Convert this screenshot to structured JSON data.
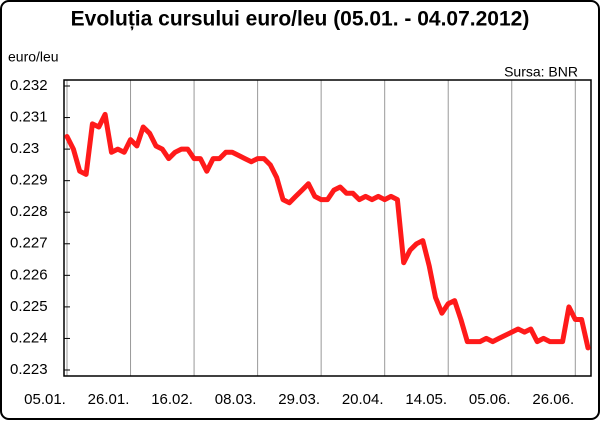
{
  "chart_data": {
    "type": "line",
    "title": "Evoluția cursului euro/leu (05.01. - 04.07.2012)",
    "y_label": "euro/leu",
    "source": "Sursa: BNR",
    "categories": [
      "05.01.",
      null,
      null,
      null,
      null,
      null,
      null,
      null,
      null,
      null,
      "26.01.",
      null,
      null,
      null,
      null,
      null,
      null,
      null,
      null,
      null,
      "16.02.",
      null,
      null,
      null,
      null,
      null,
      null,
      null,
      null,
      null,
      "08.03.",
      null,
      null,
      null,
      null,
      null,
      null,
      null,
      null,
      null,
      "29.03.",
      null,
      null,
      null,
      null,
      null,
      null,
      null,
      null,
      null,
      "20.04.",
      null,
      null,
      null,
      null,
      null,
      null,
      null,
      null,
      null,
      "14.05.",
      null,
      null,
      null,
      null,
      null,
      null,
      null,
      null,
      null,
      "05.06.",
      null,
      null,
      null,
      null,
      null,
      null,
      null,
      null,
      null,
      "26.06.",
      null,
      null
    ],
    "series": [
      {
        "name": "euro/leu",
        "color": "#ff1a1a",
        "values": [
          0.2304,
          0.23,
          0.2293,
          0.2292,
          0.2308,
          0.2307,
          0.2311,
          0.2299,
          0.23,
          0.2299,
          0.2303,
          0.2301,
          0.2307,
          0.2305,
          0.2301,
          0.23,
          0.2297,
          0.2299,
          0.23,
          0.23,
          0.2297,
          0.2297,
          0.2293,
          0.2297,
          0.2297,
          0.2299,
          0.2299,
          0.2298,
          0.2297,
          0.2296,
          0.2297,
          0.2297,
          0.2295,
          0.2291,
          0.2284,
          0.2283,
          0.2285,
          0.2287,
          0.2289,
          0.2285,
          0.2284,
          0.2284,
          0.2287,
          0.2288,
          0.2286,
          0.2286,
          0.2284,
          0.2285,
          0.2284,
          0.2285,
          0.2284,
          0.2285,
          0.2284,
          0.2264,
          0.2268,
          0.227,
          0.2271,
          0.2263,
          0.2253,
          0.2248,
          0.2251,
          0.2252,
          0.2246,
          0.2239,
          0.2239,
          0.2239,
          0.224,
          0.2239,
          0.224,
          0.2241,
          0.2242,
          0.2243,
          0.2242,
          0.2243,
          0.2239,
          0.224,
          0.2239,
          0.2239,
          0.2239,
          0.225,
          0.2246,
          0.2246,
          0.2237
        ]
      }
    ],
    "ylim": [
      0.223,
      0.232
    ],
    "yticks": [
      0.223,
      0.224,
      0.225,
      0.226,
      0.227,
      0.228,
      0.229,
      0.23,
      0.231,
      0.232
    ],
    "grid": "x"
  }
}
